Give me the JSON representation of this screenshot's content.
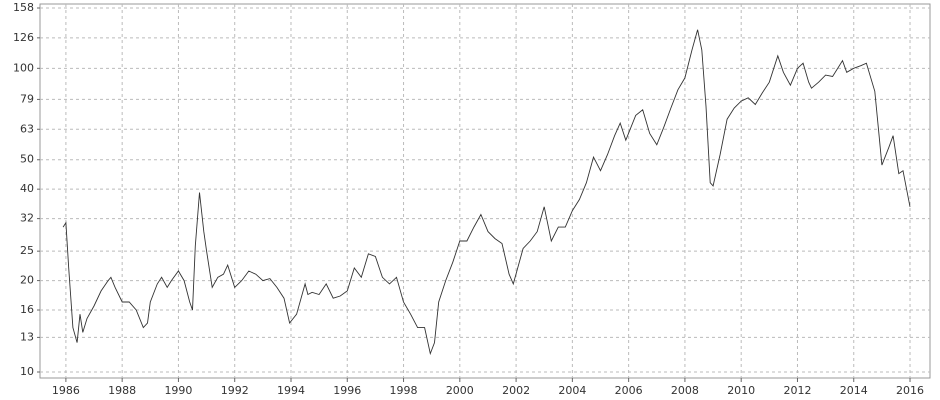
{
  "chart_data": {
    "type": "line",
    "log_y": true,
    "grid": true,
    "color": "#333333",
    "xlim": [
      1985.08,
      2016.71
    ],
    "xticks": [
      1986,
      1988,
      1990,
      1992,
      1994,
      1996,
      1998,
      2000,
      2002,
      2004,
      2006,
      2008,
      2010,
      2012,
      2014,
      2016
    ],
    "ylim": [
      10,
      158
    ],
    "yticks": [
      10,
      13,
      16,
      20,
      25,
      32,
      40,
      50,
      63,
      79,
      100,
      126,
      158
    ],
    "x": [
      1985.9,
      1986.0,
      1986.1,
      1986.25,
      1986.4,
      1986.5,
      1986.6,
      1986.75,
      1987.0,
      1987.25,
      1987.5,
      1987.6,
      1987.75,
      1988.0,
      1988.25,
      1988.5,
      1988.75,
      1988.9,
      1989.0,
      1989.25,
      1989.4,
      1989.6,
      1989.75,
      1990.0,
      1990.2,
      1990.4,
      1990.5,
      1990.6,
      1990.75,
      1990.9,
      1991.0,
      1991.2,
      1991.4,
      1991.6,
      1991.75,
      1992.0,
      1992.25,
      1992.5,
      1992.75,
      1993.0,
      1993.25,
      1993.5,
      1993.75,
      1993.95,
      1994.2,
      1994.5,
      1994.6,
      1994.75,
      1995.0,
      1995.25,
      1995.5,
      1995.75,
      1996.0,
      1996.25,
      1996.5,
      1996.75,
      1997.0,
      1997.25,
      1997.5,
      1997.75,
      1998.0,
      1998.25,
      1998.5,
      1998.75,
      1998.95,
      1999.1,
      1999.25,
      1999.5,
      1999.75,
      2000.0,
      2000.25,
      2000.5,
      2000.75,
      2001.0,
      2001.25,
      2001.5,
      2001.75,
      2001.9,
      2002.25,
      2002.5,
      2002.75,
      2003.0,
      2003.25,
      2003.5,
      2003.75,
      2004.0,
      2004.25,
      2004.5,
      2004.75,
      2005.0,
      2005.25,
      2005.5,
      2005.7,
      2005.9,
      2006.25,
      2006.5,
      2006.75,
      2007.0,
      2007.25,
      2007.5,
      2007.75,
      2008.0,
      2008.25,
      2008.45,
      2008.6,
      2008.75,
      2008.9,
      2009.0,
      2009.25,
      2009.5,
      2009.75,
      2010.0,
      2010.25,
      2010.5,
      2010.75,
      2011.0,
      2011.3,
      2011.5,
      2011.75,
      2012.0,
      2012.2,
      2012.4,
      2012.5,
      2012.75,
      2013.0,
      2013.25,
      2013.6,
      2013.75,
      2014.0,
      2014.25,
      2014.45,
      2014.75,
      2014.9,
      2015.0,
      2015.25,
      2015.4,
      2015.6,
      2015.75,
      2016.0
    ],
    "values": [
      30,
      31,
      22,
      14,
      12.5,
      15.5,
      13.5,
      15,
      16.5,
      18.5,
      20,
      20.5,
      19,
      17,
      17,
      16,
      14,
      14.5,
      17,
      19.5,
      20.5,
      19,
      20,
      21.5,
      20,
      17,
      16,
      26,
      39,
      29,
      25,
      19,
      20.5,
      21,
      22.5,
      19,
      20,
      21.5,
      21,
      20,
      20.3,
      19,
      17.5,
      14.5,
      15.5,
      19.5,
      18,
      18.3,
      18,
      19.5,
      17.5,
      17.8,
      18.5,
      22,
      20.5,
      24.5,
      24,
      20.5,
      19.5,
      20.5,
      17,
      15.5,
      14,
      14,
      11.5,
      12.5,
      17,
      20,
      23,
      27,
      27,
      30,
      33,
      29,
      27.5,
      26.5,
      21,
      19.5,
      25.5,
      27,
      29,
      35,
      27,
      30,
      30,
      34,
      37,
      42,
      51,
      46,
      52,
      60,
      66,
      58,
      70,
      73,
      61,
      56,
      64,
      74,
      85,
      93,
      115,
      134,
      115,
      75,
      42,
      41,
      52,
      68,
      74,
      78,
      80,
      76,
      83,
      90,
      110,
      97,
      88,
      100,
      104,
      90,
      86,
      90,
      95,
      94,
      106,
      97,
      100,
      102,
      104,
      84,
      60,
      48,
      55,
      60,
      45,
      46,
      35
    ]
  }
}
